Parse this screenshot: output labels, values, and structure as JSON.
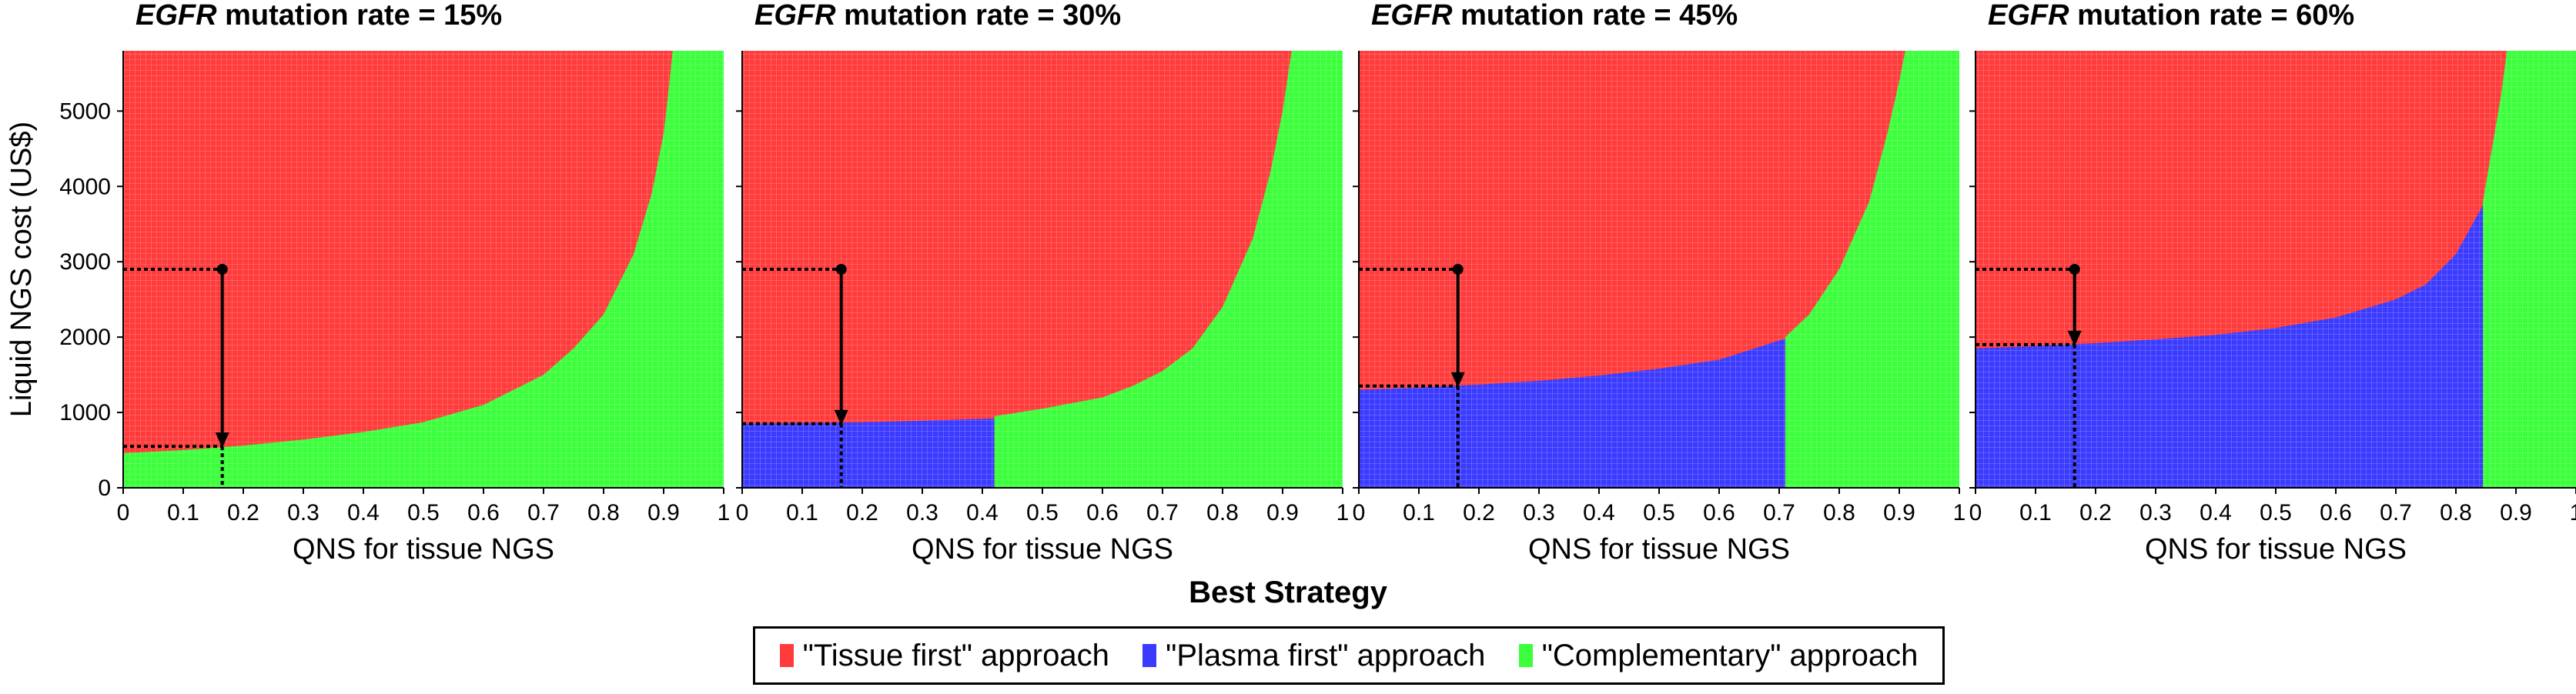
{
  "chart_data": [
    {
      "type": "heatmap",
      "title_gene": "EGFR",
      "title_rest": " mutation rate = 15%",
      "xlabel": "QNS for tissue NGS",
      "ylabel": "Liquid NGS cost (US$)",
      "xlim": [
        0,
        1
      ],
      "ylim": [
        0,
        5800
      ],
      "xticks": [
        "0",
        "0.1",
        "0.2",
        "0.3",
        "0.4",
        "0.5",
        "0.6",
        "0.7",
        "0.8",
        "0.9",
        "1"
      ],
      "yticks": [
        "0",
        "1000",
        "2000",
        "3000",
        "4000",
        "5000"
      ],
      "marker": {
        "qns": 0.165,
        "cost_from": 2900,
        "cost_to": 550
      },
      "boundary_green_top": [
        [
          0,
          460
        ],
        [
          0.1,
          500
        ],
        [
          0.2,
          560
        ],
        [
          0.3,
          640
        ],
        [
          0.4,
          740
        ],
        [
          0.5,
          870
        ],
        [
          0.6,
          1100
        ],
        [
          0.65,
          1300
        ],
        [
          0.7,
          1500
        ],
        [
          0.75,
          1850
        ],
        [
          0.8,
          2300
        ],
        [
          0.85,
          3100
        ],
        [
          0.88,
          3900
        ],
        [
          0.9,
          4700
        ],
        [
          0.91,
          5400
        ],
        [
          0.915,
          5800
        ]
      ],
      "boundary_blue_top": [],
      "blue_x_range": []
    },
    {
      "type": "heatmap",
      "title_gene": "EGFR",
      "title_rest": " mutation rate = 30%",
      "xlabel": "QNS for tissue NGS",
      "ylabel": "",
      "xlim": [
        0,
        1
      ],
      "ylim": [
        0,
        5800
      ],
      "xticks": [
        "0",
        "0.1",
        "0.2",
        "0.3",
        "0.4",
        "0.5",
        "0.6",
        "0.7",
        "0.8",
        "0.9",
        "1"
      ],
      "yticks": [],
      "marker": {
        "qns": 0.165,
        "cost_from": 2900,
        "cost_to": 850
      },
      "boundary_green_top": [
        [
          0.42,
          950
        ],
        [
          0.5,
          1050
        ],
        [
          0.6,
          1200
        ],
        [
          0.65,
          1350
        ],
        [
          0.7,
          1550
        ],
        [
          0.75,
          1850
        ],
        [
          0.8,
          2400
        ],
        [
          0.85,
          3300
        ],
        [
          0.88,
          4200
        ],
        [
          0.9,
          5000
        ],
        [
          0.915,
          5800
        ]
      ],
      "boundary_blue_top": [
        [
          0,
          850
        ],
        [
          0.1,
          860
        ],
        [
          0.2,
          870
        ],
        [
          0.3,
          890
        ],
        [
          0.42,
          920
        ]
      ],
      "blue_x_range": [
        0,
        0.42
      ]
    },
    {
      "type": "heatmap",
      "title_gene": "EGFR",
      "title_rest": " mutation rate = 45%",
      "xlabel": "QNS for tissue NGS",
      "ylabel": "",
      "xlim": [
        0,
        1
      ],
      "ylim": [
        0,
        5800
      ],
      "xticks": [
        "0",
        "0.1",
        "0.2",
        "0.3",
        "0.4",
        "0.5",
        "0.6",
        "0.7",
        "0.8",
        "0.9",
        "1"
      ],
      "yticks": [],
      "marker": {
        "qns": 0.165,
        "cost_from": 2900,
        "cost_to": 1350
      },
      "boundary_green_top": [
        [
          0.71,
          2000
        ],
        [
          0.75,
          2300
        ],
        [
          0.8,
          2900
        ],
        [
          0.85,
          3800
        ],
        [
          0.88,
          4700
        ],
        [
          0.9,
          5400
        ],
        [
          0.91,
          5800
        ]
      ],
      "boundary_blue_top": [
        [
          0,
          1300
        ],
        [
          0.1,
          1330
        ],
        [
          0.2,
          1370
        ],
        [
          0.3,
          1420
        ],
        [
          0.4,
          1490
        ],
        [
          0.5,
          1580
        ],
        [
          0.6,
          1700
        ],
        [
          0.71,
          1980
        ]
      ],
      "blue_x_range": [
        0,
        0.71
      ]
    },
    {
      "type": "heatmap",
      "title_gene": "EGFR",
      "title_rest": " mutation rate = 60%",
      "xlabel": "QNS for tissue NGS",
      "ylabel": "",
      "xlim": [
        0,
        1
      ],
      "ylim": [
        0,
        5800
      ],
      "xticks": [
        "0",
        "0.1",
        "0.2",
        "0.3",
        "0.4",
        "0.5",
        "0.6",
        "0.7",
        "0.8",
        "0.9",
        "1"
      ],
      "yticks": [],
      "marker": {
        "qns": 0.165,
        "cost_from": 2900,
        "cost_to": 1900
      },
      "boundary_green_top": [
        [
          0.845,
          3800
        ],
        [
          0.86,
          4500
        ],
        [
          0.875,
          5200
        ],
        [
          0.885,
          5800
        ]
      ],
      "boundary_blue_top": [
        [
          0,
          1850
        ],
        [
          0.1,
          1880
        ],
        [
          0.2,
          1920
        ],
        [
          0.3,
          1970
        ],
        [
          0.4,
          2030
        ],
        [
          0.5,
          2120
        ],
        [
          0.6,
          2260
        ],
        [
          0.7,
          2500
        ],
        [
          0.75,
          2700
        ],
        [
          0.8,
          3100
        ],
        [
          0.845,
          3750
        ]
      ],
      "blue_x_range": [
        0,
        0.845
      ]
    }
  ],
  "legend": {
    "title": "Best Strategy",
    "items": [
      {
        "label": "\"Tissue first\" approach",
        "color": "#ff3b3b"
      },
      {
        "label": "\"Plasma first\" approach",
        "color": "#3b3bff"
      },
      {
        "label": "\"Complementary\" approach",
        "color": "#3bff3b"
      }
    ]
  },
  "colors": {
    "tissue": "#ff3b3b",
    "plasma": "#3b3bff",
    "complementary": "#3bff3b",
    "axis": "#000000"
  }
}
